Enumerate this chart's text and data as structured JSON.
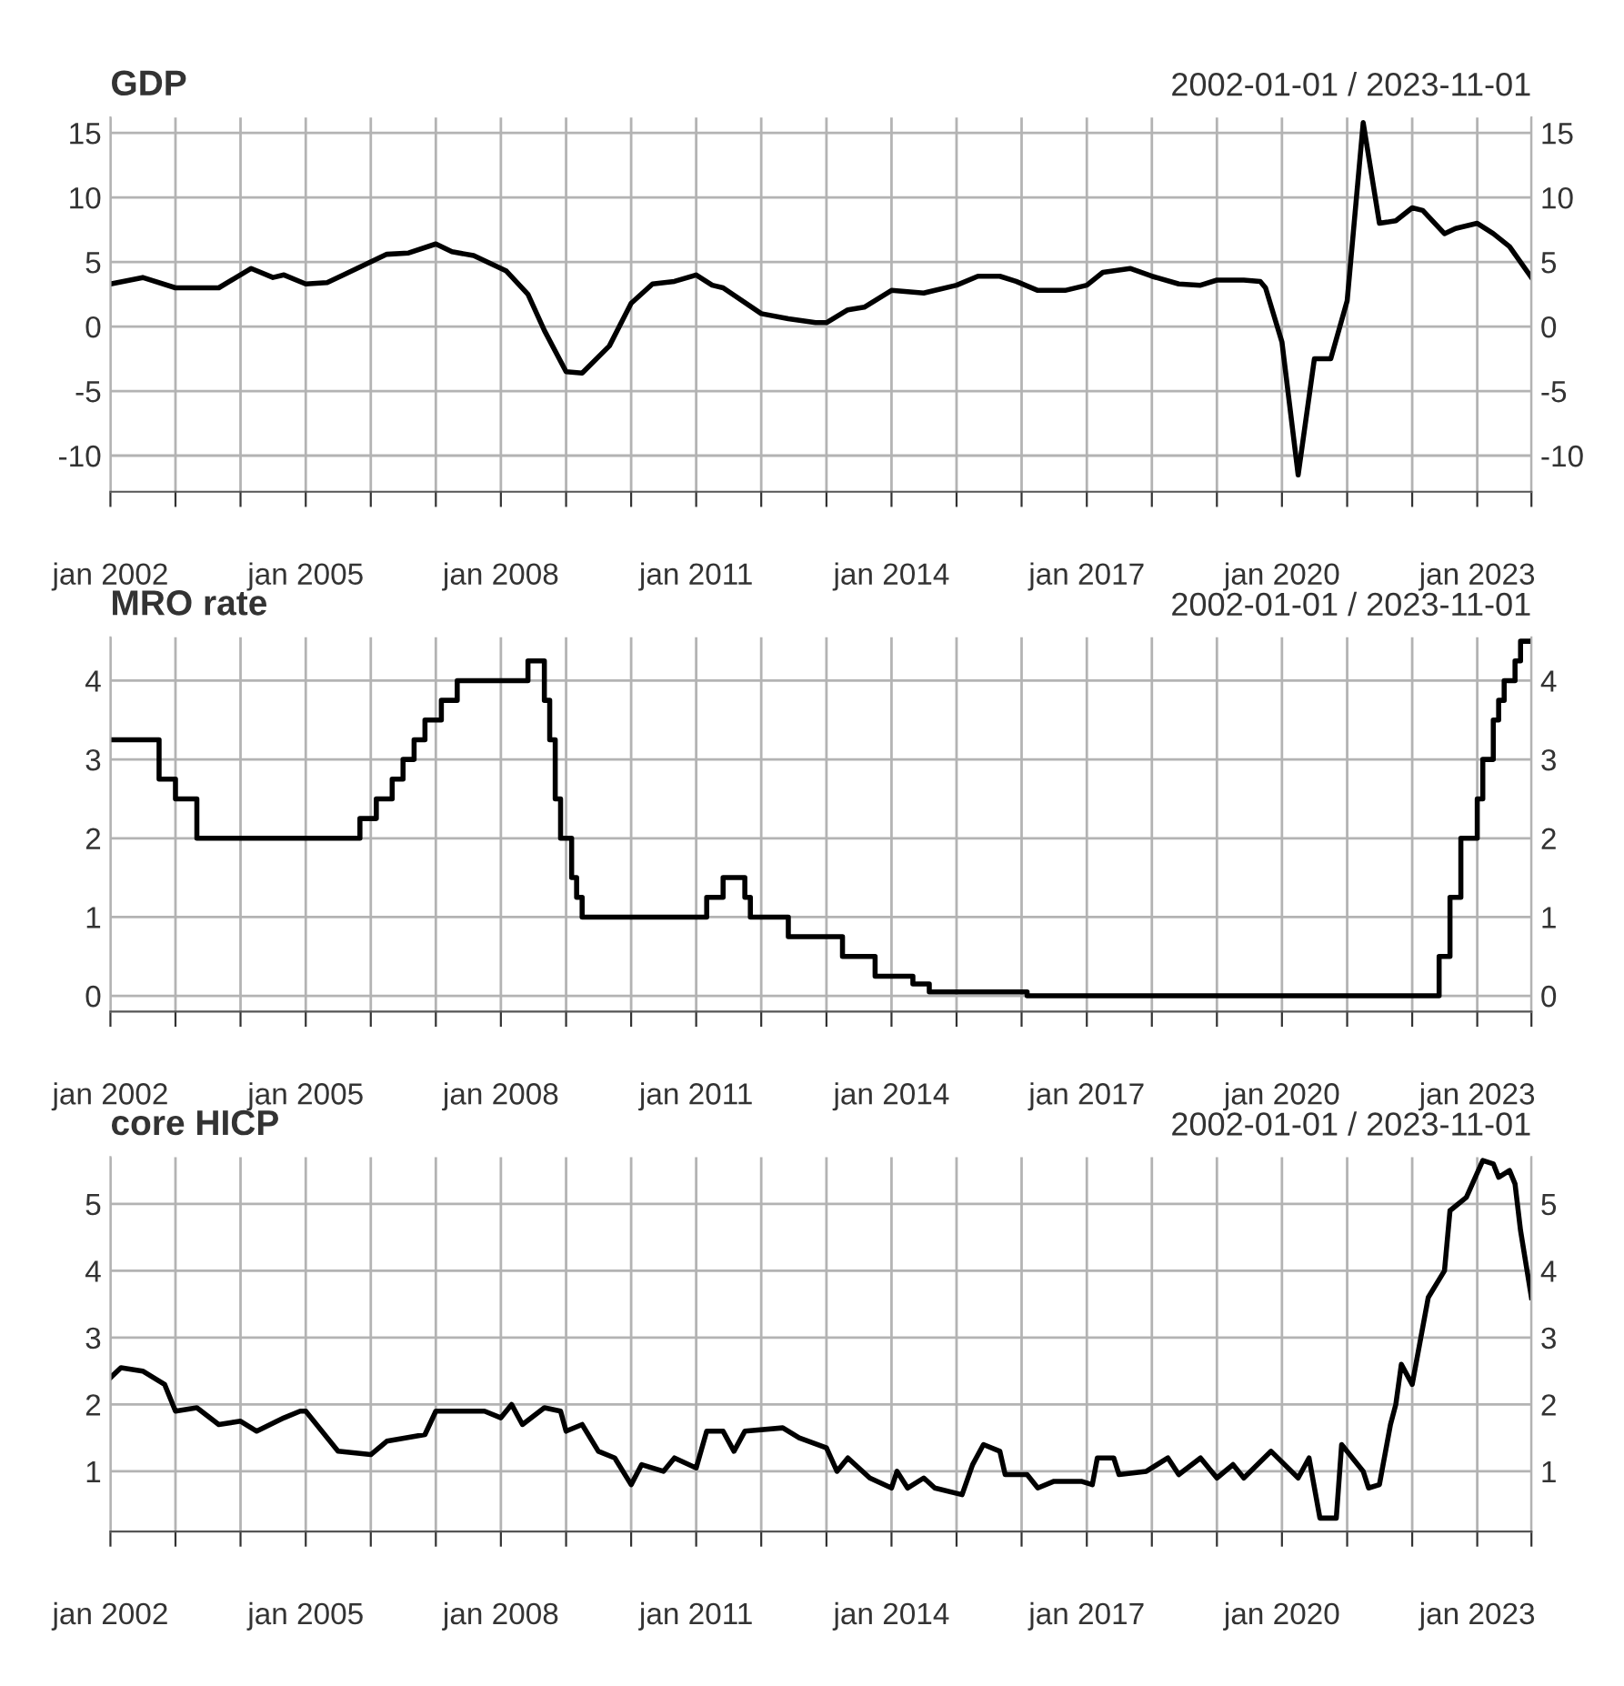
{
  "chart_data": [
    {
      "type": "line",
      "title": "GDP",
      "subtitle": "2002-01-01 / 2023-11-01",
      "xlim": [
        "2002-01-01",
        "2023-11-01"
      ],
      "xticks": [
        {
          "value": "2002-01-01",
          "label": "jan 2002"
        },
        {
          "value": "2003-01-01",
          "label": null
        },
        {
          "value": "2004-01-01",
          "label": null
        },
        {
          "value": "2005-01-01",
          "label": "jan 2005"
        },
        {
          "value": "2006-01-01",
          "label": null
        },
        {
          "value": "2007-01-01",
          "label": null
        },
        {
          "value": "2008-01-01",
          "label": "jan 2008"
        },
        {
          "value": "2009-01-01",
          "label": null
        },
        {
          "value": "2010-01-01",
          "label": null
        },
        {
          "value": "2011-01-01",
          "label": "jan 2011"
        },
        {
          "value": "2012-01-01",
          "label": null
        },
        {
          "value": "2013-01-01",
          "label": null
        },
        {
          "value": "2014-01-01",
          "label": "jan 2014"
        },
        {
          "value": "2015-01-01",
          "label": null
        },
        {
          "value": "2016-01-01",
          "label": null
        },
        {
          "value": "2017-01-01",
          "label": "jan 2017"
        },
        {
          "value": "2018-01-01",
          "label": null
        },
        {
          "value": "2019-01-01",
          "label": null
        },
        {
          "value": "2020-01-01",
          "label": "jan 2020"
        },
        {
          "value": "2021-01-01",
          "label": null
        },
        {
          "value": "2022-01-01",
          "label": null
        },
        {
          "value": "2023-01-01",
          "label": "jan 2023"
        },
        {
          "value": "2023-11-01",
          "label": null
        }
      ],
      "ylim": [
        -12.8,
        16.2
      ],
      "yticks": [
        -10,
        -5,
        0,
        5,
        10,
        15
      ],
      "y2lim": [
        -12.8,
        16.2
      ],
      "y2ticks": [
        -10,
        -5,
        0,
        5,
        10,
        15
      ],
      "grid": true,
      "series": [
        {
          "color": "#000000",
          "x": [
            "2002-01",
            "2002-07",
            "2003-01",
            "2003-09",
            "2004-03",
            "2004-07",
            "2004-09",
            "2005-01",
            "2005-05",
            "2005-08",
            "2006-04",
            "2006-08",
            "2007-01",
            "2007-04",
            "2007-08",
            "2008-02",
            "2008-06",
            "2008-09",
            "2009-01",
            "2009-04",
            "2009-09",
            "2010-01",
            "2010-05",
            "2010-09",
            "2011-01",
            "2011-04",
            "2011-06",
            "2012-01",
            "2012-06",
            "2012-11",
            "2013-01",
            "2013-05",
            "2013-08",
            "2014-01",
            "2014-07",
            "2015-01",
            "2015-05",
            "2015-09",
            "2015-12",
            "2016-04",
            "2016-09",
            "2017-01",
            "2017-04",
            "2017-09",
            "2018-01",
            "2018-06",
            "2018-10",
            "2019-01",
            "2019-06",
            "2019-09",
            "2019-10",
            "2020-01",
            "2020-04",
            "2020-07",
            "2020-10",
            "2021-01",
            "2021-04",
            "2021-07",
            "2021-10",
            "2022-01",
            "2022-03",
            "2022-07",
            "2022-09",
            "2023-01",
            "2023-04",
            "2023-07",
            "2023-11"
          ],
          "values": [
            3.3,
            3.8,
            3.0,
            3.0,
            4.5,
            3.8,
            4.0,
            3.3,
            3.4,
            4.0,
            5.6,
            5.7,
            6.4,
            5.8,
            5.5,
            4.3,
            2.5,
            -0.3,
            -3.5,
            -3.6,
            -1.5,
            1.8,
            3.3,
            3.5,
            4.0,
            3.2,
            3.0,
            1.0,
            0.6,
            0.3,
            0.3,
            1.3,
            1.5,
            2.8,
            2.6,
            3.2,
            3.9,
            3.9,
            3.5,
            2.8,
            2.8,
            3.2,
            4.2,
            4.5,
            3.9,
            3.3,
            3.2,
            3.6,
            3.6,
            3.5,
            3.0,
            -1.2,
            -11.5,
            -2.5,
            -2.5,
            2.0,
            15.8,
            8.0,
            8.2,
            9.2,
            9.0,
            7.2,
            7.6,
            8.0,
            7.2,
            6.2,
            3.8
          ]
        }
      ]
    },
    {
      "type": "step",
      "title": "MRO rate",
      "subtitle": "2002-01-01 / 2023-11-01",
      "xlim": [
        "2002-01-01",
        "2023-11-01"
      ],
      "xticks": [
        {
          "value": "2002-01-01",
          "label": "jan 2002"
        },
        {
          "value": "2003-01-01",
          "label": null
        },
        {
          "value": "2004-01-01",
          "label": null
        },
        {
          "value": "2005-01-01",
          "label": "jan 2005"
        },
        {
          "value": "2006-01-01",
          "label": null
        },
        {
          "value": "2007-01-01",
          "label": null
        },
        {
          "value": "2008-01-01",
          "label": "jan 2008"
        },
        {
          "value": "2009-01-01",
          "label": null
        },
        {
          "value": "2010-01-01",
          "label": null
        },
        {
          "value": "2011-01-01",
          "label": "jan 2011"
        },
        {
          "value": "2012-01-01",
          "label": null
        },
        {
          "value": "2013-01-01",
          "label": null
        },
        {
          "value": "2014-01-01",
          "label": "jan 2014"
        },
        {
          "value": "2015-01-01",
          "label": null
        },
        {
          "value": "2016-01-01",
          "label": null
        },
        {
          "value": "2017-01-01",
          "label": "jan 2017"
        },
        {
          "value": "2018-01-01",
          "label": null
        },
        {
          "value": "2019-01-01",
          "label": null
        },
        {
          "value": "2020-01-01",
          "label": "jan 2020"
        },
        {
          "value": "2021-01-01",
          "label": null
        },
        {
          "value": "2022-01-01",
          "label": null
        },
        {
          "value": "2023-01-01",
          "label": "jan 2023"
        },
        {
          "value": "2023-11-01",
          "label": null
        }
      ],
      "ylim": [
        -0.2,
        4.55
      ],
      "yticks": [
        0,
        1,
        2,
        3,
        4
      ],
      "y2lim": [
        -0.2,
        4.55
      ],
      "y2ticks": [
        0,
        1,
        2,
        3,
        4
      ],
      "grid": true,
      "series": [
        {
          "color": "#000000",
          "x": [
            "2002-01",
            "2002-10",
            "2003-01",
            "2003-05",
            "2005-11",
            "2006-02",
            "2006-05",
            "2006-07",
            "2006-09",
            "2006-11",
            "2007-02",
            "2007-05",
            "2008-06",
            "2008-09",
            "2008-10",
            "2008-11",
            "2008-12",
            "2009-02",
            "2009-03",
            "2009-04",
            "2011-03",
            "2011-06",
            "2011-10",
            "2011-11",
            "2012-06",
            "2013-04",
            "2013-10",
            "2014-05",
            "2014-08",
            "2016-02",
            "2022-06",
            "2022-08",
            "2022-10",
            "2023-01",
            "2023-02",
            "2023-04",
            "2023-05",
            "2023-06",
            "2023-08",
            "2023-09",
            "2023-11"
          ],
          "values": [
            3.25,
            2.75,
            2.5,
            2.0,
            2.25,
            2.5,
            2.75,
            3.0,
            3.25,
            3.5,
            3.75,
            4.0,
            4.25,
            3.75,
            3.25,
            2.5,
            2.0,
            1.5,
            1.25,
            1.0,
            1.25,
            1.5,
            1.25,
            1.0,
            0.75,
            0.5,
            0.25,
            0.15,
            0.05,
            0.0,
            0.5,
            1.25,
            2.0,
            2.5,
            3.0,
            3.5,
            3.75,
            4.0,
            4.25,
            4.5,
            4.5
          ]
        }
      ]
    },
    {
      "type": "line",
      "title": "core HICP",
      "subtitle": "2002-01-01 / 2023-11-01",
      "xlim": [
        "2002-01-01",
        "2023-11-01"
      ],
      "xticks": [
        {
          "value": "2002-01-01",
          "label": "jan 2002"
        },
        {
          "value": "2003-01-01",
          "label": null
        },
        {
          "value": "2004-01-01",
          "label": null
        },
        {
          "value": "2005-01-01",
          "label": "jan 2005"
        },
        {
          "value": "2006-01-01",
          "label": null
        },
        {
          "value": "2007-01-01",
          "label": null
        },
        {
          "value": "2008-01-01",
          "label": "jan 2008"
        },
        {
          "value": "2009-01-01",
          "label": null
        },
        {
          "value": "2010-01-01",
          "label": null
        },
        {
          "value": "2011-01-01",
          "label": "jan 2011"
        },
        {
          "value": "2012-01-01",
          "label": null
        },
        {
          "value": "2013-01-01",
          "label": null
        },
        {
          "value": "2014-01-01",
          "label": "jan 2014"
        },
        {
          "value": "2015-01-01",
          "label": null
        },
        {
          "value": "2016-01-01",
          "label": null
        },
        {
          "value": "2017-01-01",
          "label": "jan 2017"
        },
        {
          "value": "2018-01-01",
          "label": null
        },
        {
          "value": "2019-01-01",
          "label": null
        },
        {
          "value": "2020-01-01",
          "label": "jan 2020"
        },
        {
          "value": "2021-01-01",
          "label": null
        },
        {
          "value": "2022-01-01",
          "label": null
        },
        {
          "value": "2023-01-01",
          "label": "jan 2023"
        },
        {
          "value": "2023-11-01",
          "label": null
        }
      ],
      "ylim": [
        0.1,
        5.7
      ],
      "yticks": [
        1,
        2,
        3,
        4,
        5
      ],
      "y2lim": [
        0.1,
        5.7
      ],
      "y2ticks": [
        1,
        2,
        3,
        4,
        5
      ],
      "grid": true,
      "series": [
        {
          "color": "#000000",
          "x": [
            "2002-01",
            "2002-03",
            "2002-07",
            "2002-11",
            "2003-01",
            "2003-05",
            "2003-09",
            "2004-01",
            "2004-04",
            "2004-09",
            "2004-12",
            "2005-01",
            "2005-07",
            "2006-01",
            "2006-04",
            "2006-11",
            "2007-01",
            "2007-10",
            "2008-01",
            "2008-03",
            "2008-05",
            "2008-09",
            "2008-12",
            "2009-01",
            "2009-04",
            "2009-07",
            "2009-10",
            "2010-01",
            "2010-03",
            "2010-07",
            "2010-09",
            "2011-01",
            "2011-03",
            "2011-06",
            "2011-08",
            "2011-10",
            "2012-05",
            "2012-08",
            "2013-01",
            "2013-03",
            "2013-05",
            "2013-09",
            "2014-01",
            "2014-02",
            "2014-04",
            "2014-07",
            "2014-09",
            "2015-02",
            "2015-04",
            "2015-06",
            "2015-09",
            "2015-10",
            "2016-02",
            "2016-04",
            "2016-07",
            "2016-12",
            "2017-02",
            "2017-03",
            "2017-06",
            "2017-07",
            "2017-12",
            "2018-04",
            "2018-06",
            "2018-10",
            "2019-01",
            "2019-04",
            "2019-06",
            "2019-11",
            "2020-04",
            "2020-06",
            "2020-08",
            "2020-11",
            "2020-12",
            "2021-04",
            "2021-05",
            "2021-07",
            "2021-09",
            "2021-10",
            "2021-11",
            "2022-01",
            "2022-04",
            "2022-07",
            "2022-08",
            "2022-11",
            "2023-02",
            "2023-04",
            "2023-05",
            "2023-07",
            "2023-08",
            "2023-09",
            "2023-11"
          ],
          "values": [
            2.4,
            2.55,
            2.5,
            2.3,
            1.9,
            1.95,
            1.7,
            1.75,
            1.6,
            1.8,
            1.9,
            1.9,
            1.3,
            1.25,
            1.45,
            1.55,
            1.9,
            1.9,
            1.8,
            2.0,
            1.7,
            1.95,
            1.9,
            1.6,
            1.7,
            1.3,
            1.2,
            0.8,
            1.1,
            1.0,
            1.2,
            1.05,
            1.6,
            1.6,
            1.3,
            1.6,
            1.65,
            1.5,
            1.35,
            1.0,
            1.2,
            0.9,
            0.75,
            1.0,
            0.75,
            0.9,
            0.75,
            0.65,
            1.1,
            1.4,
            1.3,
            0.95,
            0.95,
            0.75,
            0.85,
            0.85,
            0.8,
            1.2,
            1.2,
            0.95,
            1.0,
            1.2,
            0.95,
            1.2,
            0.9,
            1.1,
            0.9,
            1.3,
            0.9,
            1.2,
            0.3,
            0.3,
            1.4,
            1.0,
            0.75,
            0.8,
            1.7,
            2.0,
            2.6,
            2.3,
            3.6,
            4.0,
            4.9,
            5.1,
            5.65,
            5.6,
            5.4,
            5.5,
            5.3,
            4.6,
            3.6
          ]
        }
      ]
    }
  ]
}
